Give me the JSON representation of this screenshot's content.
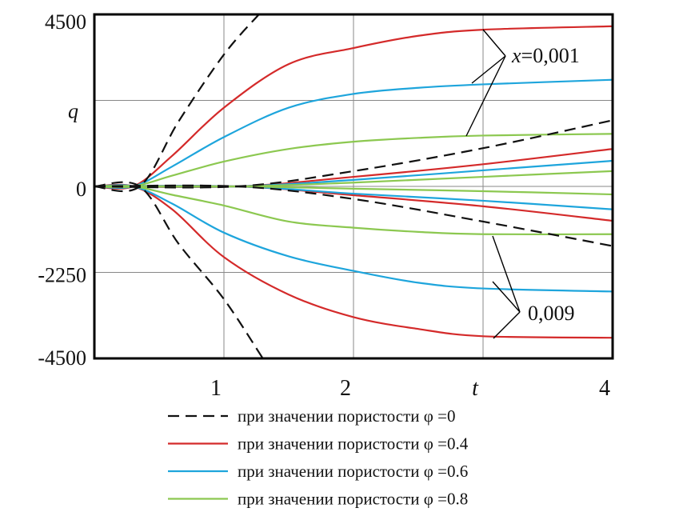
{
  "chart_data": {
    "type": "line",
    "xlabel": "t",
    "ylabel": "q",
    "xlim": [
      0,
      4
    ],
    "ylim": [
      -4500,
      4500
    ],
    "x_ticks": [
      {
        "value": 1,
        "label": "1"
      },
      {
        "value": 2,
        "label": "2"
      },
      {
        "value": 3,
        "label": "t"
      },
      {
        "value": 4,
        "label": "4"
      }
    ],
    "y_ticks": [
      {
        "value": 4500,
        "label": "4500"
      },
      {
        "value": 2250,
        "label": "q"
      },
      {
        "value": 0,
        "label": "0"
      },
      {
        "value": -2250,
        "label": "-2250"
      },
      {
        "value": -4500,
        "label": "-4500"
      }
    ],
    "grid": true,
    "legend_placement": "bottom",
    "annotations": [
      {
        "text": "x=0,001",
        "italic_part": "x",
        "rest": "=0,001"
      },
      {
        "text": "0,009"
      }
    ],
    "series": [
      {
        "name": "при значении пористости φ =0",
        "color": "#111111",
        "dash": true,
        "curves": [
          [
            [
              0,
              0
            ],
            [
              0.35,
              0
            ],
            [
              0.65,
              1700
            ],
            [
              1,
              3450
            ],
            [
              1.27,
              4500
            ]
          ],
          [
            [
              0,
              0
            ],
            [
              1.1,
              0
            ],
            [
              2,
              400
            ],
            [
              3,
              1000
            ],
            [
              4,
              1730
            ]
          ],
          [
            [
              0,
              0
            ],
            [
              1.1,
              0
            ],
            [
              2,
              -330
            ],
            [
              3,
              -920
            ],
            [
              4,
              -1560
            ]
          ],
          [
            [
              0,
              0
            ],
            [
              0.35,
              0
            ],
            [
              0.65,
              -1500
            ],
            [
              1,
              -2950
            ],
            [
              1.3,
              -4500
            ]
          ]
        ]
      },
      {
        "name": "при значении пористости φ =0.4",
        "color": "#d42a2a",
        "dash": false,
        "curves": [
          [
            [
              0,
              0
            ],
            [
              0.3,
              0
            ],
            [
              0.6,
              800
            ],
            [
              1,
              2060
            ],
            [
              1.5,
              3200
            ],
            [
              2,
              3620
            ],
            [
              2.5,
              3940
            ],
            [
              3,
              4100
            ],
            [
              4,
              4190
            ]
          ],
          [
            [
              0,
              0
            ],
            [
              1.1,
              0
            ],
            [
              2,
              250
            ],
            [
              3,
              580
            ],
            [
              4,
              980
            ]
          ],
          [
            [
              0,
              0
            ],
            [
              1.1,
              0
            ],
            [
              2,
              -230
            ],
            [
              3,
              -520
            ],
            [
              4,
              -900
            ]
          ],
          [
            [
              0,
              0
            ],
            [
              0.3,
              0
            ],
            [
              0.6,
              -600
            ],
            [
              1,
              -1850
            ],
            [
              1.5,
              -2830
            ],
            [
              2,
              -3420
            ],
            [
              2.5,
              -3730
            ],
            [
              3,
              -3920
            ],
            [
              4,
              -3960
            ]
          ]
        ]
      },
      {
        "name": "при значении пористости φ =0.6",
        "color": "#1ea5dc",
        "dash": false,
        "curves": [
          [
            [
              0,
              0
            ],
            [
              0.3,
              0
            ],
            [
              0.6,
              520
            ],
            [
              1,
              1290
            ],
            [
              1.5,
              2060
            ],
            [
              2,
              2420
            ],
            [
              2.5,
              2580
            ],
            [
              3,
              2670
            ],
            [
              4,
              2790
            ]
          ],
          [
            [
              0,
              0
            ],
            [
              1.1,
              0
            ],
            [
              2,
              170
            ],
            [
              3,
              420
            ],
            [
              4,
              670
            ]
          ],
          [
            [
              0,
              0
            ],
            [
              1.1,
              0
            ],
            [
              2,
              -190
            ],
            [
              3,
              -375
            ],
            [
              4,
              -600
            ]
          ],
          [
            [
              0,
              0
            ],
            [
              0.3,
              0
            ],
            [
              0.6,
              -450
            ],
            [
              1,
              -1210
            ],
            [
              1.5,
              -1830
            ],
            [
              2,
              -2210
            ],
            [
              2.5,
              -2520
            ],
            [
              3,
              -2670
            ],
            [
              4,
              -2750
            ]
          ]
        ]
      },
      {
        "name": "при значении пористости φ =0.8",
        "color": "#8cc850",
        "dash": false,
        "curves": [
          [
            [
              0,
              0
            ],
            [
              0.3,
              0
            ],
            [
              0.6,
              280
            ],
            [
              1,
              650
            ],
            [
              1.5,
              980
            ],
            [
              2,
              1170
            ],
            [
              2.5,
              1270
            ],
            [
              3,
              1330
            ],
            [
              4,
              1375
            ]
          ],
          [
            [
              0,
              0
            ],
            [
              1.1,
              0
            ],
            [
              2,
              100
            ],
            [
              3,
              250
            ],
            [
              4,
              400
            ]
          ],
          [
            [
              0,
              0
            ],
            [
              1.1,
              0
            ],
            [
              2,
              -60
            ],
            [
              3,
              -125
            ],
            [
              4,
              -210
            ]
          ],
          [
            [
              0,
              0
            ],
            [
              0.3,
              0
            ],
            [
              0.6,
              -220
            ],
            [
              1,
              -500
            ],
            [
              1.5,
              -920
            ],
            [
              2,
              -1080
            ],
            [
              2.5,
              -1190
            ],
            [
              3,
              -1250
            ],
            [
              4,
              -1250
            ]
          ]
        ]
      }
    ]
  }
}
